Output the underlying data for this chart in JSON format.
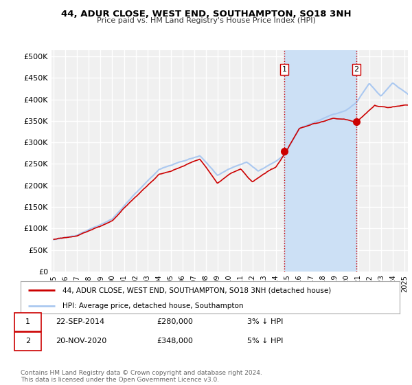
{
  "title": "44, ADUR CLOSE, WEST END, SOUTHAMPTON, SO18 3NH",
  "subtitle": "Price paid vs. HM Land Registry's House Price Index (HPI)",
  "ylabel_ticks": [
    "£0",
    "£50K",
    "£100K",
    "£150K",
    "£200K",
    "£250K",
    "£300K",
    "£350K",
    "£400K",
    "£450K",
    "£500K"
  ],
  "ytick_values": [
    0,
    50000,
    100000,
    150000,
    200000,
    250000,
    300000,
    350000,
    400000,
    450000,
    500000
  ],
  "ylim": [
    0,
    515000
  ],
  "xlim_start": 1994.8,
  "xlim_end": 2025.3,
  "hpi_color": "#aac8f0",
  "price_color": "#cc0000",
  "sale1_date": 2014.73,
  "sale1_price": 280000,
  "sale2_date": 2020.9,
  "sale2_price": 348000,
  "vline1_x": 2014.73,
  "vline2_x": 2020.9,
  "vline_color": "#cc0000",
  "label1": "1",
  "label2": "2",
  "legend_line1": "44, ADUR CLOSE, WEST END, SOUTHAMPTON, SO18 3NH (detached house)",
  "legend_line2": "HPI: Average price, detached house, Southampton",
  "table_row1_date": "22-SEP-2014",
  "table_row1_price": "£280,000",
  "table_row1_hpi": "3% ↓ HPI",
  "table_row2_date": "20-NOV-2020",
  "table_row2_price": "£348,000",
  "table_row2_hpi": "5% ↓ HPI",
  "footnote": "Contains HM Land Registry data © Crown copyright and database right 2024.\nThis data is licensed under the Open Government Licence v3.0.",
  "bg_color": "#ffffff",
  "plot_bg_color": "#f0f0f0",
  "grid_color": "#ffffff",
  "highlight_bg": "#cce0f5"
}
